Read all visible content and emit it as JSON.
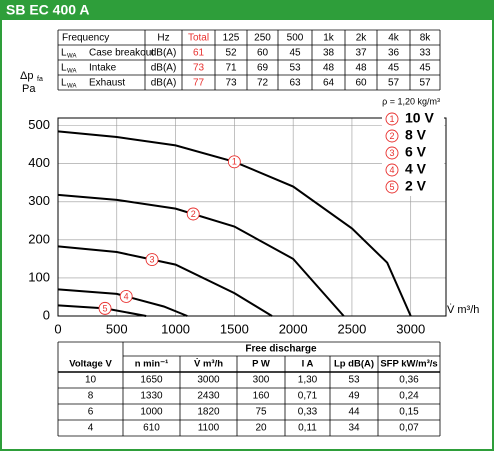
{
  "header": {
    "title": "SB EC 400 A"
  },
  "sound_table": {
    "headers": [
      "Frequency",
      "Hz",
      "Total",
      "125",
      "250",
      "500",
      "1k",
      "2k",
      "4k",
      "8k"
    ],
    "rows": [
      {
        "symbol": "L",
        "subscript": "WA",
        "cells": [
          "Case breakout",
          "dB(A)",
          61,
          52,
          60,
          45,
          38,
          37,
          36,
          33
        ]
      },
      {
        "symbol": "L",
        "subscript": "WA",
        "cells": [
          "Intake",
          "dB(A)",
          73,
          71,
          69,
          53,
          48,
          48,
          45,
          45
        ]
      },
      {
        "symbol": "L",
        "subscript": "WA",
        "cells": [
          "Exhaust",
          "dB(A)",
          77,
          73,
          72,
          63,
          64,
          60,
          57,
          57
        ]
      }
    ]
  },
  "chart_data": {
    "type": "line",
    "ylabel": "Δp",
    "ylabel_sub": "fa",
    "yunit": "Pa",
    "xlabel": "V̇ m³/h",
    "annotation": "ρ = 1,20 kg/m³",
    "xlim": [
      0,
      3300
    ],
    "xticks": [
      0,
      500,
      1000,
      1500,
      2000,
      2500,
      3000
    ],
    "ylim": [
      0,
      520
    ],
    "yticks": [
      0,
      100,
      200,
      300,
      400,
      500
    ],
    "grid": true,
    "color": "#000000",
    "marker_color": "#e8312f",
    "series": [
      {
        "name": "10 V",
        "marker": "1",
        "x": [
          0,
          500,
          1000,
          1500,
          2000,
          2500,
          2800,
          3000
        ],
        "values": [
          485,
          470,
          448,
          405,
          340,
          230,
          140,
          0
        ]
      },
      {
        "name": "8 V",
        "marker": "2",
        "x": [
          0,
          500,
          1000,
          1500,
          2000,
          2430
        ],
        "values": [
          318,
          305,
          282,
          235,
          150,
          0
        ]
      },
      {
        "name": "6 V",
        "marker": "3",
        "x": [
          0,
          500,
          1000,
          1500,
          1820
        ],
        "values": [
          183,
          168,
          135,
          60,
          0
        ]
      },
      {
        "name": "4 V",
        "marker": "4",
        "x": [
          0,
          500,
          900,
          1100
        ],
        "values": [
          70,
          58,
          25,
          0
        ]
      },
      {
        "name": "2 V",
        "marker": "5",
        "x": [
          0,
          400,
          750
        ],
        "values": [
          28,
          20,
          0
        ]
      }
    ]
  },
  "performance_table": {
    "group_header": "Free discharge",
    "headers": [
      "Voltage V",
      "n min⁻¹",
      "V̇ m³/h",
      "P W",
      "I A",
      "Lp dB(A)",
      "SFP kW/m³/s"
    ],
    "rows": [
      [
        10,
        1650,
        3000,
        300,
        "1,30",
        53,
        "0,36"
      ],
      [
        8,
        1330,
        2430,
        160,
        "0,71",
        49,
        "0,24"
      ],
      [
        6,
        1000,
        1820,
        75,
        "0,33",
        44,
        "0,15"
      ],
      [
        4,
        610,
        1100,
        20,
        "0,11",
        34,
        "0,07"
      ]
    ]
  }
}
